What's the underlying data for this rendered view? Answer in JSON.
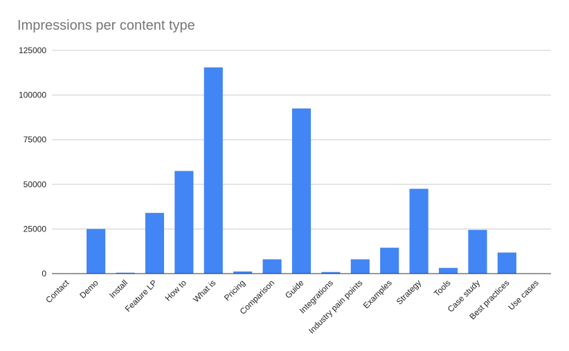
{
  "chart_data": {
    "type": "bar",
    "title": "Impressions per content type",
    "xlabel": "",
    "ylabel": "",
    "categories": [
      "Contact",
      "Demo",
      "Install",
      "Feature LP",
      "How to",
      "What is",
      "Pricing",
      "Comparison",
      "Guide",
      "Integrations",
      "Industry pain points",
      "Examples",
      "Strategy",
      "Tools",
      "Case study",
      "Best practices",
      "Use cases"
    ],
    "values": [
      0,
      25000,
      500,
      34000,
      57500,
      115500,
      1200,
      8000,
      92500,
      900,
      8000,
      14500,
      47500,
      3200,
      24500,
      11800,
      200
    ],
    "ylim": [
      0,
      125000
    ],
    "yticks": [
      "0",
      "25000",
      "50000",
      "75000",
      "100000",
      "125000"
    ],
    "grid": true,
    "legend": "none",
    "bar_color": "#4285f4",
    "grid_color": "#cccccc",
    "axis_color": "#333333"
  }
}
